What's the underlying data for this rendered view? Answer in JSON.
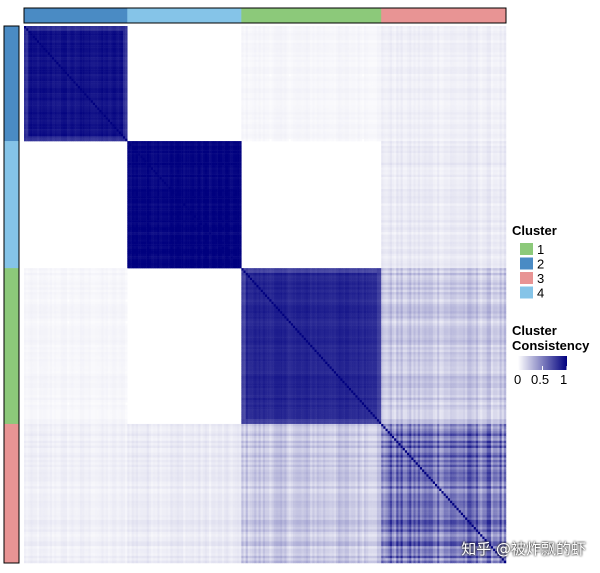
{
  "chart_data": {
    "type": "heatmap",
    "clusters": [
      {
        "id": 2,
        "color": "#4a8bc4",
        "size": 48
      },
      {
        "id": 4,
        "color": "#85c4e8",
        "size": 53
      },
      {
        "id": 1,
        "color": "#8cc97a",
        "size": 65
      },
      {
        "id": 3,
        "color": "#e89494",
        "size": 58
      }
    ],
    "block_consensus": [
      [
        0.93,
        0.0,
        0.03,
        0.05
      ],
      [
        0.0,
        0.99,
        0.0,
        0.07
      ],
      [
        0.03,
        0.0,
        0.86,
        0.18
      ],
      [
        0.05,
        0.07,
        0.18,
        0.55
      ]
    ],
    "legend": {
      "cluster_title": "Cluster",
      "cluster_items": [
        {
          "label": "1",
          "color": "#8cc97a"
        },
        {
          "label": "2",
          "color": "#4a8bc4"
        },
        {
          "label": "3",
          "color": "#e89494"
        },
        {
          "label": "4",
          "color": "#85c4e8"
        }
      ],
      "consistency_title_line1": "Cluster",
      "consistency_title_line2": "Consistency",
      "scale_ticks": [
        "0",
        "0.5",
        "1"
      ],
      "scale_colors": [
        "#ffffff",
        "#00007f"
      ]
    }
  },
  "watermark": "知乎 @被炸飘的虾"
}
